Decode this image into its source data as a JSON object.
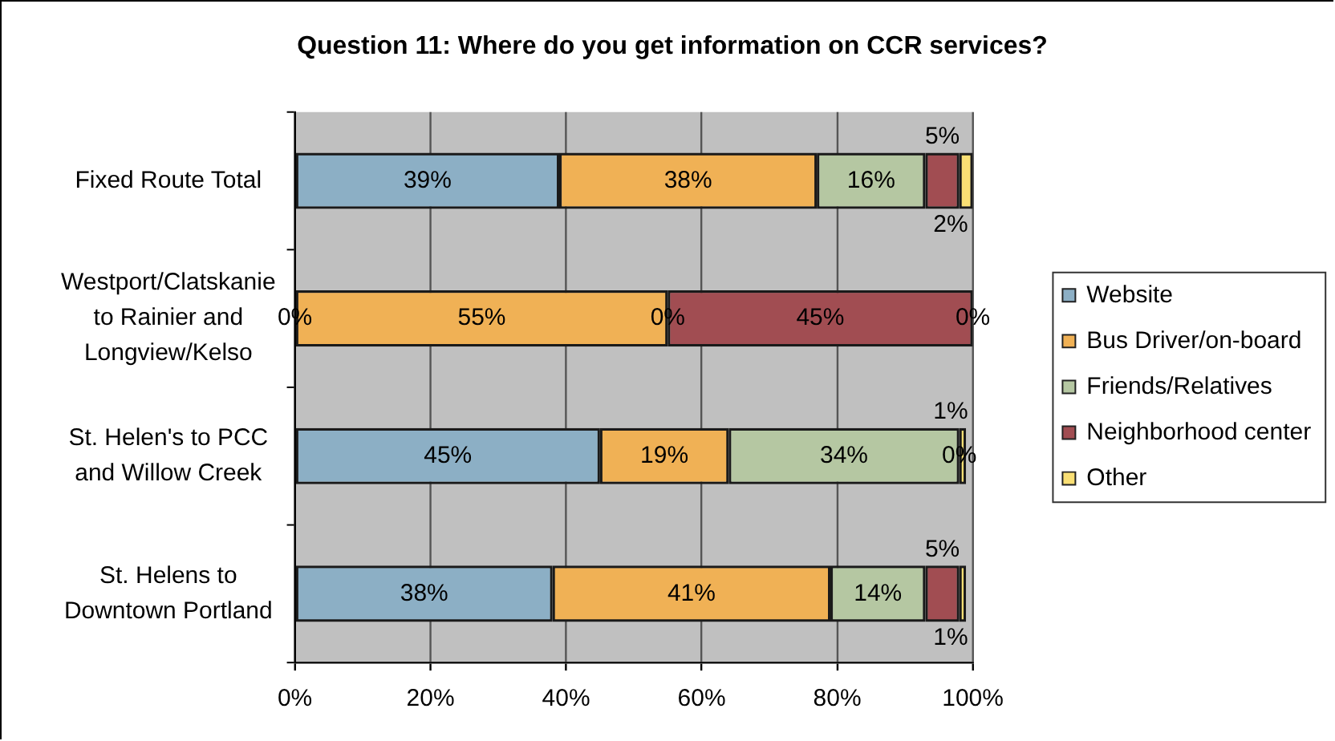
{
  "chart_data": {
    "type": "bar",
    "orientation": "horizontal",
    "stacked": true,
    "title": "Question 11: Where do you get information on CCR services?",
    "categories": [
      "Fixed Route Total",
      "Westport/Clatskanie to Rainier and Longview/Kelso",
      "St. Helen's to PCC and Willow Creek",
      "St. Helens to Downtown Portland"
    ],
    "series": [
      {
        "name": "Website",
        "color": "#8cafc5",
        "values": [
          39,
          0,
          45,
          38
        ],
        "value_labels": [
          "39%",
          "0%",
          "45%",
          "38%"
        ]
      },
      {
        "name": "Bus Driver/on-board",
        "color": "#f0b155",
        "values": [
          38,
          55,
          19,
          41
        ],
        "value_labels": [
          "38%",
          "55%",
          "19%",
          "41%"
        ]
      },
      {
        "name": "Friends/Relatives",
        "color": "#b5c7a2",
        "values": [
          16,
          0,
          34,
          14
        ],
        "value_labels": [
          "16%",
          "0%",
          "34%",
          "14%"
        ]
      },
      {
        "name": "Neighborhood center",
        "color": "#a14d52",
        "values": [
          5,
          45,
          0,
          5
        ],
        "value_labels": [
          "5%",
          "45%",
          "0%",
          "5%"
        ]
      },
      {
        "name": "Other",
        "color": "#f9df74",
        "values": [
          2,
          0,
          1,
          1
        ],
        "value_labels": [
          "2%",
          "0%",
          "1%",
          "1%"
        ]
      }
    ],
    "xlim": [
      0,
      100
    ],
    "xticks": [
      {
        "value": 0,
        "label": "0%"
      },
      {
        "value": 20,
        "label": "20%"
      },
      {
        "value": 40,
        "label": "40%"
      },
      {
        "value": 60,
        "label": "60%"
      },
      {
        "value": 80,
        "label": "80%"
      },
      {
        "value": 100,
        "label": "100%"
      }
    ],
    "grid": "x",
    "legend": "right"
  }
}
